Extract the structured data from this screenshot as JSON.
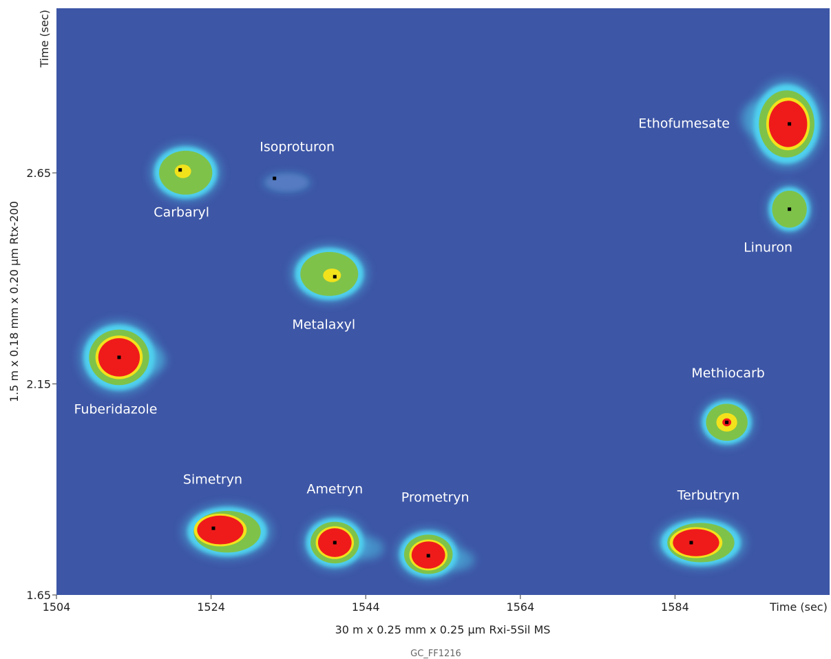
{
  "chart_data": {
    "type": "heatmap",
    "plot_kind": "GCxGC contour plot",
    "xlabel": "30 m x 0.25 mm x 0.25 µm Rxi-5Sil MS",
    "ylabel": "1.5 m x 0.18 mm x 0.20 µm Rtx-200",
    "x_unit_label": "Time (sec)",
    "y_unit_label": "Time (sec)",
    "xlim": [
      1504,
      1604
    ],
    "ylim": [
      1.65,
      3.04
    ],
    "x_ticks": [
      "1504",
      "1524",
      "1544",
      "1564",
      "1584"
    ],
    "y_ticks": [
      "1.65",
      "2.15",
      "2.65"
    ],
    "figure_code": "GC_FF1216",
    "colors": {
      "background": "#3d56a6",
      "low": "#4fd0ee",
      "mid": "#7ec24a",
      "high": "#f2e21c",
      "max": "#ef1b1b"
    },
    "peaks": [
      {
        "name": "Carbaryl",
        "x": 1520.0,
        "y": 2.657,
        "intensity": 0.5
      },
      {
        "name": "Isoproturon",
        "x": 1532.2,
        "y": 2.637,
        "intensity": 0.1
      },
      {
        "name": "Metalaxyl",
        "x": 1540.0,
        "y": 2.404,
        "intensity": 0.55
      },
      {
        "name": "Fuberidazole",
        "x": 1512.1,
        "y": 2.213,
        "intensity": 1.0
      },
      {
        "name": "Ethofumesate",
        "x": 1598.8,
        "y": 2.766,
        "intensity": 0.95
      },
      {
        "name": "Linuron",
        "x": 1598.8,
        "y": 2.564,
        "intensity": 0.4
      },
      {
        "name": "Methiocarb",
        "x": 1590.7,
        "y": 2.059,
        "intensity": 0.62
      },
      {
        "name": "Simetryn",
        "x": 1524.3,
        "y": 1.808,
        "intensity": 1.0
      },
      {
        "name": "Ametryn",
        "x": 1540.0,
        "y": 1.774,
        "intensity": 1.0
      },
      {
        "name": "Prometryn",
        "x": 1552.1,
        "y": 1.743,
        "intensity": 1.0
      },
      {
        "name": "Terbutryn",
        "x": 1586.1,
        "y": 1.774,
        "intensity": 1.0
      }
    ]
  }
}
